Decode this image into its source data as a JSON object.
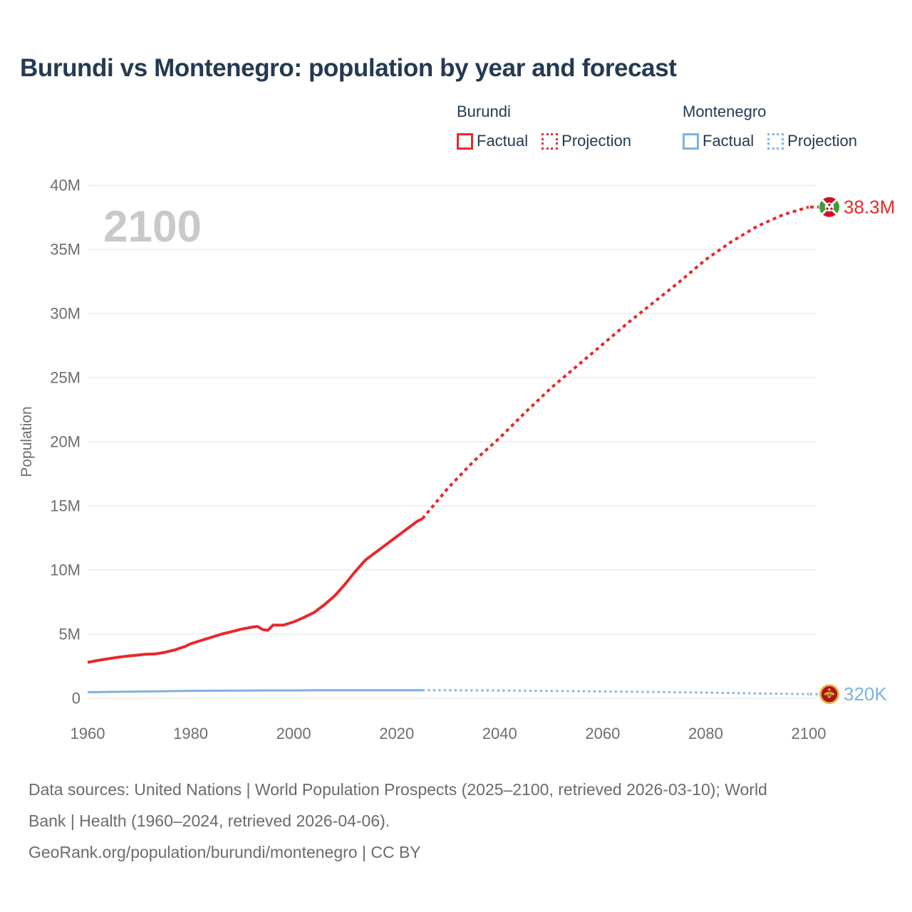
{
  "title": "Burundi vs Montenegro: population by year and forecast",
  "legend": {
    "groups": [
      {
        "name": "Burundi",
        "color": "#e8282c",
        "items": [
          {
            "label": "Factual",
            "style": "solid"
          },
          {
            "label": "Projection",
            "style": "dotted"
          }
        ]
      },
      {
        "name": "Montenegro",
        "color": "#7db2e2",
        "items": [
          {
            "label": "Factual",
            "style": "solid"
          },
          {
            "label": "Projection",
            "style": "dotted"
          }
        ]
      }
    ]
  },
  "footer": {
    "lines": [
      "Data sources: United Nations | World Population Prospects (2025–2100, retrieved 2026-03-10); World",
      "Bank | Health (1960–2024, retrieved 2026-04-06).",
      "GeoRank.org/population/burundi/montenegro | CC BY"
    ]
  },
  "chart_data": {
    "type": "line",
    "title": "Burundi vs Montenegro: population by year and forecast",
    "xlabel": "",
    "ylabel": "Population",
    "watermark": "2100",
    "unit": "millions",
    "xlim": [
      1960,
      2100
    ],
    "ylim": [
      0,
      40
    ],
    "grid": "horizontal",
    "legend_position": "top-right",
    "x_ticks": [
      1960,
      1980,
      2000,
      2020,
      2040,
      2060,
      2080,
      2100
    ],
    "x_tick_labels": [
      "1960",
      "1980",
      "2000",
      "2020",
      "2040",
      "2060",
      "2080",
      "2100"
    ],
    "y_ticks": [
      0,
      5,
      10,
      15,
      20,
      25,
      30,
      35,
      40
    ],
    "y_tick_labels": [
      "0",
      "5M",
      "10M",
      "15M",
      "20M",
      "25M",
      "30M",
      "35M",
      "40M"
    ],
    "colors": {
      "burundi": "#e8282c",
      "montenegro": "#7db2e2",
      "grid": "#ececec",
      "axis_text": "#6e6e6e",
      "watermark": "#c9c9c9"
    },
    "series": [
      {
        "name": "Burundi Factual",
        "country": "burundi",
        "color": "#e8282c",
        "dash": "solid",
        "width": 4,
        "points": [
          [
            1960,
            2.8
          ],
          [
            1962,
            2.95
          ],
          [
            1964,
            3.08
          ],
          [
            1966,
            3.2
          ],
          [
            1968,
            3.3
          ],
          [
            1970,
            3.38
          ],
          [
            1971,
            3.42
          ],
          [
            1973,
            3.45
          ],
          [
            1975,
            3.58
          ],
          [
            1977,
            3.78
          ],
          [
            1979,
            4.05
          ],
          [
            1980,
            4.25
          ],
          [
            1982,
            4.5
          ],
          [
            1984,
            4.75
          ],
          [
            1986,
            5.0
          ],
          [
            1988,
            5.2
          ],
          [
            1990,
            5.4
          ],
          [
            1992,
            5.55
          ],
          [
            1993,
            5.6
          ],
          [
            1994,
            5.35
          ],
          [
            1995,
            5.3
          ],
          [
            1996,
            5.7
          ],
          [
            1998,
            5.7
          ],
          [
            2000,
            5.95
          ],
          [
            2002,
            6.3
          ],
          [
            2004,
            6.7
          ],
          [
            2006,
            7.3
          ],
          [
            2008,
            8.0
          ],
          [
            2010,
            8.9
          ],
          [
            2012,
            9.9
          ],
          [
            2014,
            10.8
          ],
          [
            2015,
            11.1
          ],
          [
            2016,
            11.4
          ],
          [
            2018,
            12.0
          ],
          [
            2020,
            12.6
          ],
          [
            2022,
            13.2
          ],
          [
            2024,
            13.8
          ],
          [
            2025,
            14.0
          ]
        ]
      },
      {
        "name": "Burundi Projection",
        "country": "burundi",
        "color": "#e8282c",
        "dash": "dotted",
        "width": 4,
        "points": [
          [
            2025,
            14.0
          ],
          [
            2030,
            16.4
          ],
          [
            2035,
            18.5
          ],
          [
            2040,
            20.3
          ],
          [
            2045,
            22.3
          ],
          [
            2050,
            24.2
          ],
          [
            2055,
            25.9
          ],
          [
            2060,
            27.6
          ],
          [
            2065,
            29.3
          ],
          [
            2070,
            30.9
          ],
          [
            2075,
            32.5
          ],
          [
            2080,
            34.2
          ],
          [
            2085,
            35.6
          ],
          [
            2090,
            36.8
          ],
          [
            2095,
            37.7
          ],
          [
            2100,
            38.3
          ]
        ]
      },
      {
        "name": "Montenegro Factual",
        "country": "montenegro",
        "color": "#7db2e2",
        "dash": "solid",
        "width": 3,
        "points": [
          [
            1960,
            0.47
          ],
          [
            1965,
            0.5
          ],
          [
            1970,
            0.52
          ],
          [
            1975,
            0.55
          ],
          [
            1980,
            0.58
          ],
          [
            1985,
            0.59
          ],
          [
            1990,
            0.6
          ],
          [
            1995,
            0.61
          ],
          [
            2000,
            0.61
          ],
          [
            2005,
            0.62
          ],
          [
            2010,
            0.62
          ],
          [
            2015,
            0.62
          ],
          [
            2020,
            0.62
          ],
          [
            2025,
            0.63
          ]
        ]
      },
      {
        "name": "Montenegro Projection",
        "country": "montenegro",
        "color": "#7db2e2",
        "dash": "dotted",
        "width": 3,
        "points": [
          [
            2025,
            0.63
          ],
          [
            2030,
            0.62
          ],
          [
            2040,
            0.6
          ],
          [
            2050,
            0.57
          ],
          [
            2060,
            0.53
          ],
          [
            2070,
            0.49
          ],
          [
            2080,
            0.44
          ],
          [
            2090,
            0.38
          ],
          [
            2100,
            0.32
          ]
        ]
      }
    ],
    "end_markers": [
      {
        "series": "Burundi",
        "flag": "burundi",
        "label": "38.3M",
        "color": "#e8282c",
        "year": 2100,
        "value": 38.3
      },
      {
        "series": "Montenegro",
        "flag": "montenegro",
        "label": "320K",
        "color": "#7db2e2",
        "year": 2100,
        "value": 0.32
      }
    ]
  }
}
